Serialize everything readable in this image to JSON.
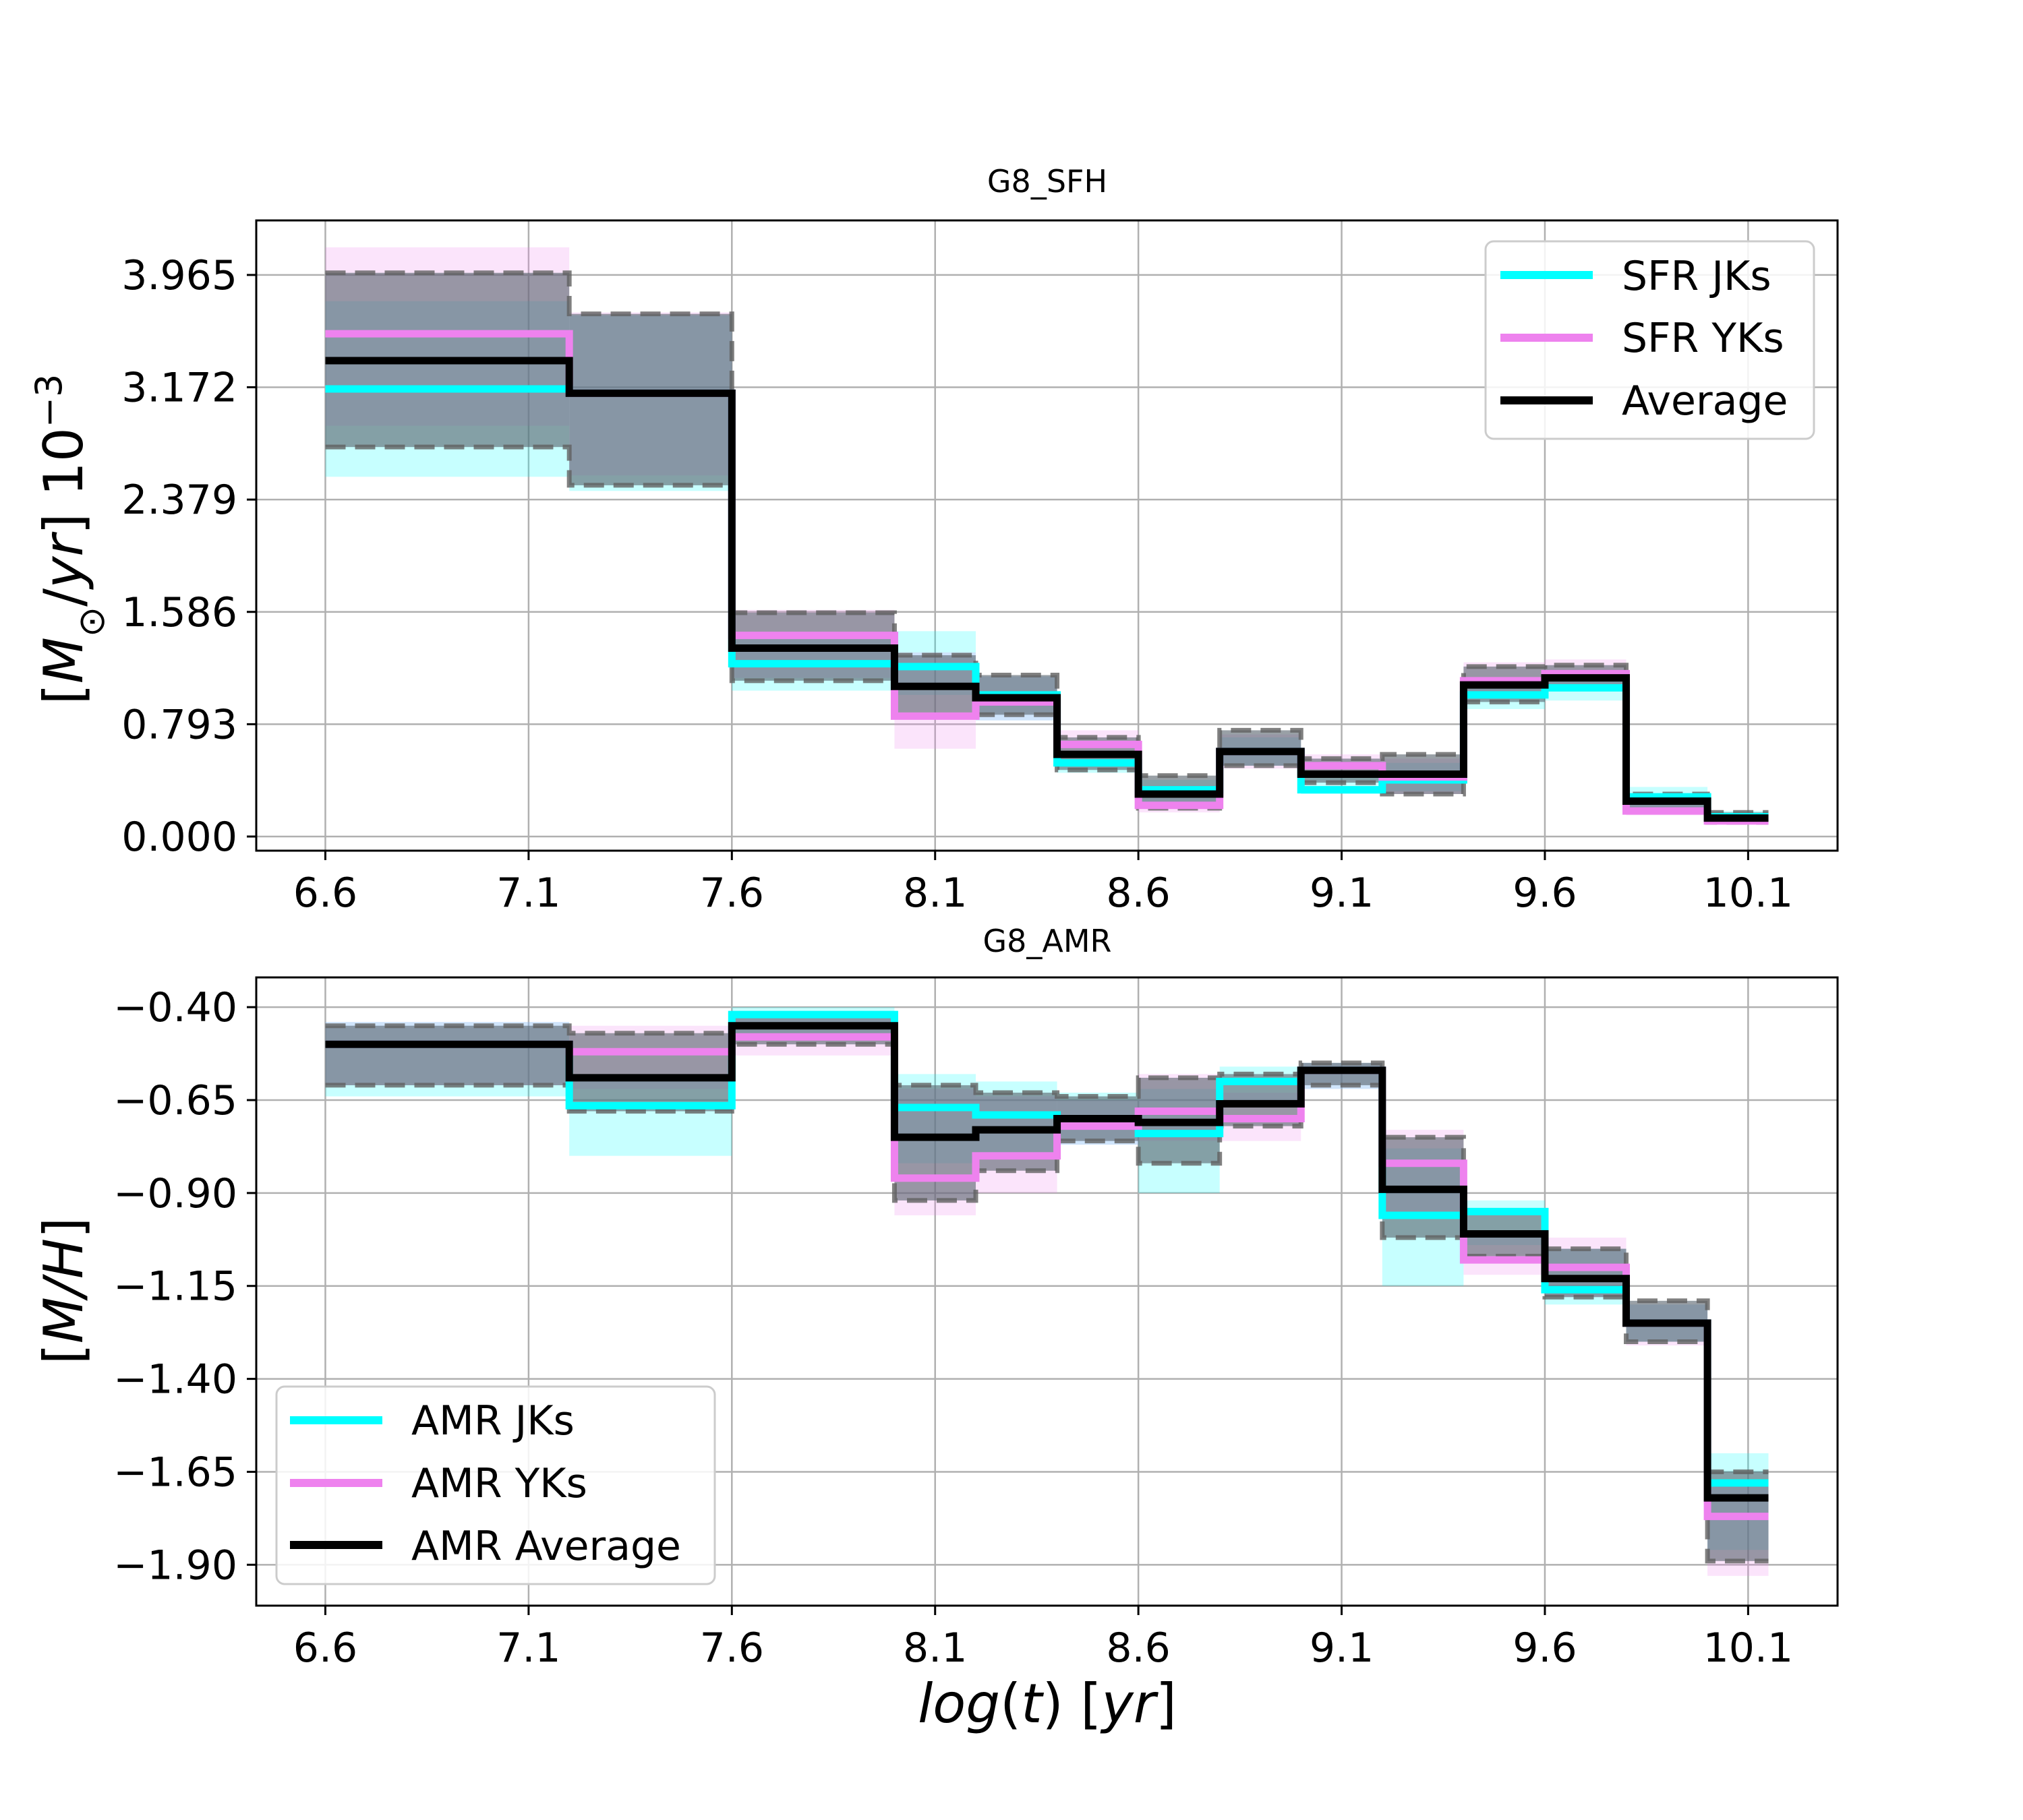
{
  "colors": {
    "jks": "#00ffff",
    "yks": "#ee82ee",
    "average": "#000000",
    "band_overlap": "#5a6670",
    "grid": "#b0b0b0"
  },
  "chart_data": [
    {
      "id": "sfh",
      "type": "line",
      "step": "post",
      "title": "G8_SFH",
      "xlabel": "",
      "ylabel": "[M_⊙/yr] 10⁻3",
      "ylabel_parts": {
        "pre": "[",
        "italic_M": "M",
        "sub": "⊙",
        "slash": "/",
        "italic_yr": "yr",
        "post": "] 10",
        "sup": "−3"
      },
      "xlim": [
        6.43,
        10.32
      ],
      "ylim": [
        -0.1,
        4.35
      ],
      "xticks": [
        6.6,
        7.1,
        7.6,
        8.1,
        8.6,
        9.1,
        9.6,
        10.1
      ],
      "xtick_labels": [
        "6.6",
        "7.1",
        "7.6",
        "8.1",
        "8.6",
        "9.1",
        "9.6",
        "10.1"
      ],
      "yticks": [
        0.0,
        0.793,
        1.586,
        2.379,
        3.172,
        3.965
      ],
      "ytick_labels": [
        "0.000",
        "0.793",
        "1.586",
        "2.379",
        "3.172",
        "3.965"
      ],
      "legend": {
        "position": "top-right",
        "entries": [
          "SFR JKs",
          "SFR YKs",
          "Average"
        ]
      },
      "bin_edges": [
        6.6,
        7.2,
        7.6,
        8.0,
        8.2,
        8.4,
        8.6,
        8.8,
        9.0,
        9.2,
        9.4,
        9.6,
        9.8,
        10.0,
        10.15
      ],
      "series": [
        {
          "name": "SFR JKs",
          "color_key": "jks",
          "values": [
            3.16,
            3.13,
            1.22,
            1.2,
            1.0,
            0.52,
            0.33,
            0.6,
            0.33,
            0.4,
            1.0,
            1.05,
            0.28,
            0.14
          ],
          "lower": [
            2.54,
            2.44,
            1.03,
            1.0,
            0.82,
            0.45,
            0.22,
            0.5,
            0.3,
            0.32,
            0.9,
            0.96,
            0.19,
            0.1
          ],
          "upper": [
            3.78,
            3.68,
            1.42,
            1.45,
            1.13,
            0.6,
            0.4,
            0.7,
            0.42,
            0.52,
            1.1,
            1.15,
            0.35,
            0.18
          ]
        },
        {
          "name": "SFR YKs",
          "color_key": "yks",
          "values": [
            3.55,
            3.13,
            1.42,
            0.85,
            0.95,
            0.65,
            0.22,
            0.6,
            0.5,
            0.42,
            1.1,
            1.15,
            0.18,
            0.11
          ],
          "lower": [
            2.9,
            2.55,
            1.12,
            0.62,
            0.82,
            0.5,
            0.17,
            0.48,
            0.42,
            0.3,
            1.0,
            1.05,
            0.15,
            0.09
          ],
          "upper": [
            4.16,
            3.7,
            1.6,
            1.3,
            1.13,
            0.75,
            0.36,
            0.72,
            0.58,
            0.55,
            1.23,
            1.25,
            0.25,
            0.16
          ]
        },
        {
          "name": "Average",
          "color_key": "average",
          "values": [
            3.36,
            3.13,
            1.33,
            1.06,
            0.98,
            0.58,
            0.3,
            0.6,
            0.44,
            0.44,
            1.07,
            1.12,
            0.25,
            0.13
          ],
          "lower": [
            2.75,
            2.48,
            1.1,
            0.85,
            0.86,
            0.47,
            0.2,
            0.5,
            0.38,
            0.3,
            0.95,
            1.05,
            0.18,
            0.1
          ],
          "upper": [
            3.98,
            3.69,
            1.58,
            1.28,
            1.14,
            0.7,
            0.43,
            0.75,
            0.55,
            0.58,
            1.2,
            1.21,
            0.3,
            0.17
          ]
        }
      ]
    },
    {
      "id": "amr",
      "type": "line",
      "step": "post",
      "title": "G8_AMR",
      "xlabel": "log(t) [yr]",
      "xlabel_parts": {
        "italic_log": "log",
        "open": "(",
        "italic_t": "t",
        "mid": ") [",
        "italic_yr": "yr",
        "close": "]"
      },
      "ylabel": "[M/H]",
      "ylabel_parts": {
        "pre": "[",
        "italic": "M/H",
        "post": "]"
      },
      "xlim": [
        6.43,
        10.32
      ],
      "ylim": [
        -2.01,
        -0.32
      ],
      "xticks": [
        6.6,
        7.1,
        7.6,
        8.1,
        8.6,
        9.1,
        9.6,
        10.1
      ],
      "xtick_labels": [
        "6.6",
        "7.1",
        "7.6",
        "8.1",
        "8.6",
        "9.1",
        "9.6",
        "10.1"
      ],
      "yticks": [
        -0.4,
        -0.65,
        -0.9,
        -1.15,
        -1.4,
        -1.65,
        -1.9
      ],
      "ytick_labels": [
        "−0.40",
        "−0.65",
        "−0.90",
        "−1.15",
        "−1.40",
        "−1.65",
        "−1.90"
      ],
      "legend": {
        "position": "lower-left",
        "entries": [
          "AMR JKs",
          "AMR YKs",
          "AMR Average"
        ]
      },
      "bin_edges": [
        6.6,
        7.2,
        7.6,
        8.0,
        8.2,
        8.4,
        8.6,
        8.8,
        9.0,
        9.2,
        9.4,
        9.6,
        9.8,
        10.0,
        10.15
      ],
      "series": [
        {
          "name": "AMR JKs",
          "color_key": "jks",
          "values": [
            -0.5,
            -0.665,
            -0.42,
            -0.67,
            -0.69,
            -0.7,
            -0.74,
            -0.6,
            -0.57,
            -0.96,
            -0.95,
            -1.16,
            -1.25,
            -1.68
          ],
          "lower": [
            -0.64,
            -0.8,
            -0.47,
            -0.82,
            -0.81,
            -0.77,
            -0.9,
            -0.66,
            -0.62,
            -1.15,
            -1.04,
            -1.2,
            -1.3,
            -1.86
          ],
          "upper": [
            -0.44,
            -0.58,
            -0.4,
            -0.58,
            -0.6,
            -0.63,
            -0.62,
            -0.56,
            -0.55,
            -0.78,
            -0.92,
            -1.05,
            -1.2,
            -1.6
          ]
        },
        {
          "name": "AMR YKs",
          "color_key": "yks",
          "values": [
            -0.5,
            -0.52,
            -0.48,
            -0.86,
            -0.8,
            -0.72,
            -0.68,
            -0.7,
            -0.57,
            -0.82,
            -1.08,
            -1.1,
            -1.25,
            -1.77
          ],
          "lower": [
            -0.61,
            -0.62,
            -0.53,
            -0.96,
            -0.9,
            -0.77,
            -0.76,
            -0.76,
            -0.62,
            -0.95,
            -1.12,
            -1.18,
            -1.31,
            -1.93
          ],
          "upper": [
            -0.44,
            -0.45,
            -0.43,
            -0.62,
            -0.64,
            -0.65,
            -0.58,
            -0.63,
            -0.55,
            -0.73,
            -1.02,
            -1.02,
            -1.2,
            -1.68
          ]
        },
        {
          "name": "AMR Average",
          "color_key": "average",
          "values": [
            -0.5,
            -0.59,
            -0.45,
            -0.75,
            -0.73,
            -0.7,
            -0.71,
            -0.66,
            -0.57,
            -0.89,
            -1.01,
            -1.13,
            -1.25,
            -1.72
          ],
          "lower": [
            -0.61,
            -0.68,
            -0.5,
            -0.92,
            -0.84,
            -0.76,
            -0.82,
            -0.72,
            -0.61,
            -1.02,
            -1.07,
            -1.18,
            -1.3,
            -1.89
          ],
          "upper": [
            -0.45,
            -0.47,
            -0.42,
            -0.61,
            -0.63,
            -0.64,
            -0.59,
            -0.58,
            -0.55,
            -0.75,
            -0.95,
            -1.05,
            -1.19,
            -1.65
          ]
        }
      ]
    }
  ]
}
